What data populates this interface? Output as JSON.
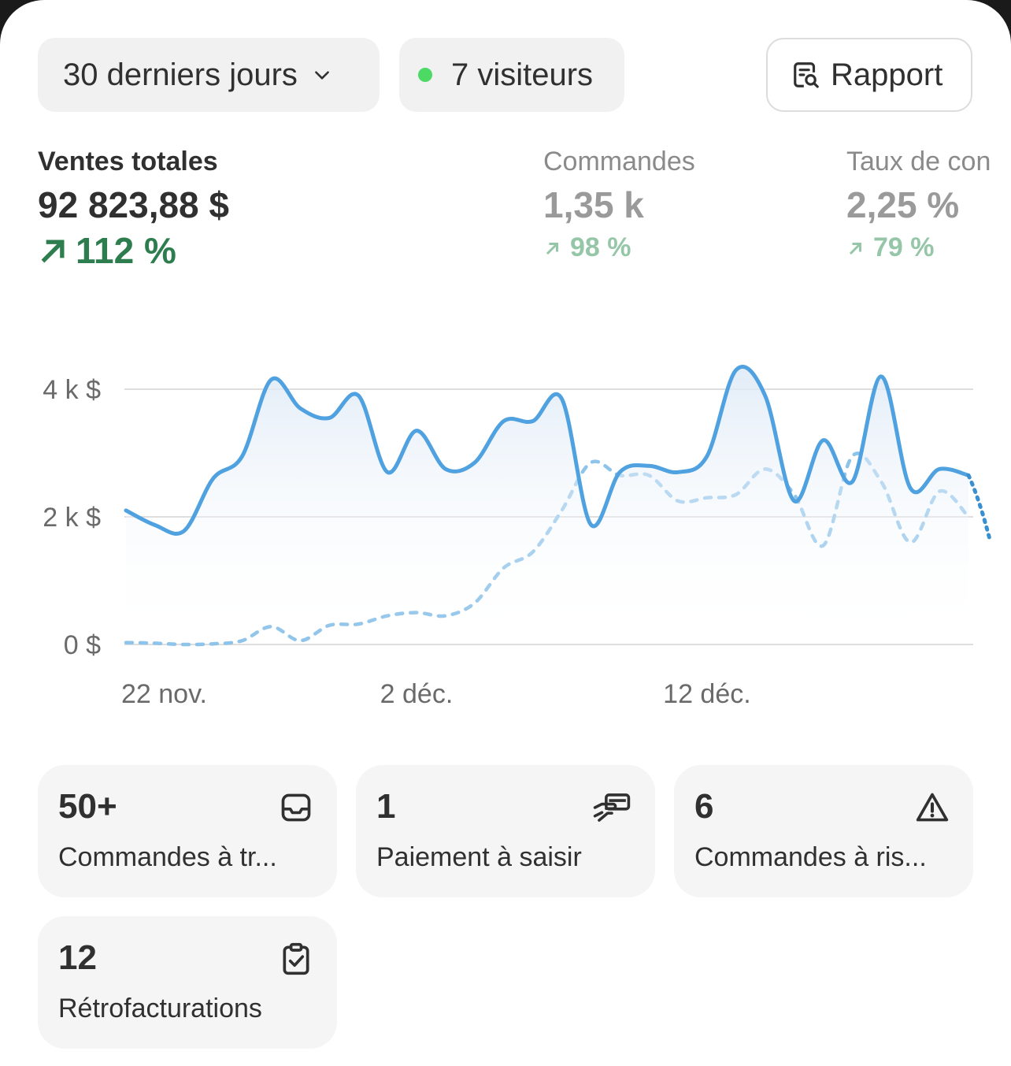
{
  "filters": {
    "date_range": "30 derniers jours",
    "visitors": "7 visiteurs",
    "visitors_status_color": "#4cd964"
  },
  "report_button": {
    "label": "Rapport"
  },
  "metrics": {
    "sales": {
      "label": "Ventes totales",
      "value": "92 823,88 $",
      "delta": "112 %"
    },
    "orders": {
      "label": "Commandes",
      "value": "1,35 k",
      "delta": "98 %"
    },
    "conversion": {
      "label": "Taux de con",
      "value": "2,25 %",
      "delta": "79 %"
    }
  },
  "chart_data": {
    "type": "line",
    "y_ticks": [
      "4 k $",
      "2 k $",
      "0 $"
    ],
    "x_ticks": [
      "22 nov.",
      "2 déc.",
      "12 déc."
    ],
    "ylim": [
      0,
      4000
    ],
    "grid": true,
    "series": [
      {
        "style": "solid",
        "color": "#4fa1e0",
        "x": [
          "22 nov.",
          "23 nov.",
          "24 nov.",
          "25 nov.",
          "26 nov.",
          "27 nov.",
          "28 nov.",
          "29 nov.",
          "30 nov.",
          "1 déc.",
          "2 déc.",
          "3 déc.",
          "4 déc.",
          "5 déc.",
          "6 déc.",
          "7 déc.",
          "8 déc.",
          "9 déc.",
          "10 déc.",
          "11 déc.",
          "12 déc.",
          "13 déc.",
          "14 déc.",
          "15 déc.",
          "16 déc.",
          "17 déc.",
          "18 déc.",
          "19 déc.",
          "20 déc.",
          "21 déc."
        ],
        "values": [
          2100,
          1870,
          1780,
          2600,
          2950,
          4150,
          3700,
          3550,
          3900,
          2700,
          3350,
          2750,
          2850,
          3500,
          3500,
          3850,
          1880,
          2700,
          2800,
          2700,
          2950,
          4300,
          3900,
          2250,
          3200,
          2550,
          4200,
          2450,
          2750,
          2650
        ]
      },
      {
        "style": "dotted",
        "color": "#8ec3ea",
        "x": [
          "22 nov.",
          "23 nov.",
          "24 nov.",
          "25 nov.",
          "26 nov.",
          "27 nov.",
          "28 nov.",
          "29 nov.",
          "30 nov.",
          "1 déc.",
          "2 déc.",
          "3 déc.",
          "4 déc.",
          "5 déc.",
          "6 déc.",
          "7 déc.",
          "8 déc.",
          "9 déc.",
          "10 déc.",
          "11 déc.",
          "12 déc.",
          "13 déc.",
          "14 déc.",
          "15 déc.",
          "16 déc.",
          "17 déc.",
          "18 déc.",
          "19 déc.",
          "20 déc.",
          "21 déc."
        ],
        "values": [
          30,
          20,
          0,
          10,
          60,
          280,
          60,
          300,
          320,
          450,
          500,
          450,
          650,
          1200,
          1450,
          2100,
          2850,
          2650,
          2650,
          2250,
          2300,
          2350,
          2750,
          2350,
          1550,
          2950,
          2550,
          1600,
          2400,
          2000
        ]
      }
    ]
  },
  "tiles": [
    {
      "count": "50+",
      "label": "Commandes à tr...",
      "icon": "inbox-icon"
    },
    {
      "count": "1",
      "label": "Paiement à saisir",
      "icon": "hand-card-icon"
    },
    {
      "count": "6",
      "label": "Commandes à ris...",
      "icon": "alert-triangle-icon"
    },
    {
      "count": "12",
      "label": "Rétrofacturations",
      "icon": "clipboard-check-icon"
    }
  ]
}
